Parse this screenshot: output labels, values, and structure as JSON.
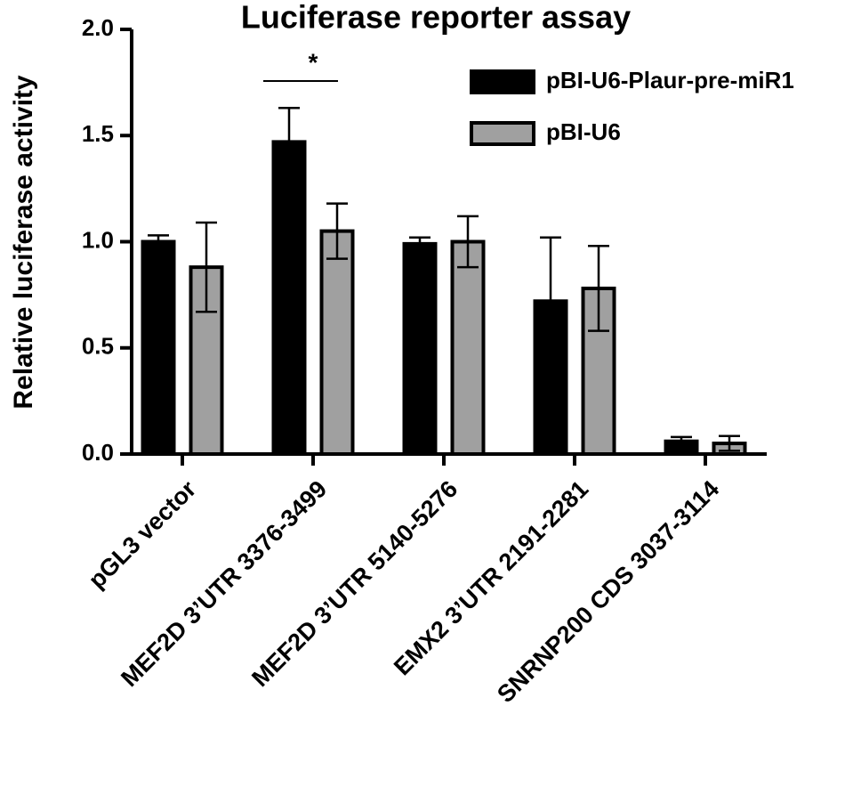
{
  "chart_data": {
    "type": "bar",
    "title": "Luciferase reporter assay",
    "y_label": "Relative luciferase activity",
    "categories": [
      "pGL3 vector",
      "MEF2D 3’UTR 3376-3499",
      "MEF2D 3’UTR 5140-5276",
      "EMX2 3’UTR 2191-2281",
      "SNRNP200 CDS 3037-3114"
    ],
    "series": [
      {
        "name": "pBI-U6-Plaur-pre-miR1",
        "color": "#000000",
        "values": [
          1.0,
          1.47,
          0.99,
          0.72,
          0.06
        ],
        "errors": [
          0.03,
          0.16,
          0.03,
          0.3,
          0.02
        ]
      },
      {
        "name": "pBI-U6",
        "color": "#a0a0a0",
        "values": [
          0.88,
          1.05,
          1.0,
          0.78,
          0.05
        ],
        "errors": [
          0.21,
          0.13,
          0.12,
          0.2,
          0.035
        ]
      }
    ],
    "significance": {
      "category": 1,
      "label": "*"
    },
    "ylim": [
      0,
      2
    ],
    "yticks": [
      {
        "value": 0,
        "label": "0.0"
      },
      {
        "value": 0.5,
        "label": "0.5"
      },
      {
        "value": 1,
        "label": "1.0"
      },
      {
        "value": 1.5,
        "label": "1.5"
      },
      {
        "value": 2,
        "label": "2.0"
      }
    ],
    "legend": "top-right"
  }
}
